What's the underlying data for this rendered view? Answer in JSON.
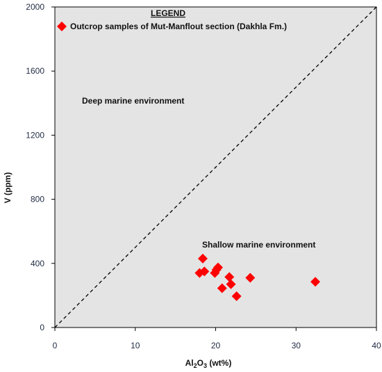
{
  "chart_data": {
    "type": "scatter",
    "xlabel_main": "Al",
    "xlabel_sub": "2",
    "xlabel_main2": "O",
    "xlabel_sub2": "3",
    "xlabel_tail": " (wt%)",
    "ylabel": "V (ppm)",
    "xlim": [
      0,
      40
    ],
    "ylim": [
      0,
      2000
    ],
    "xticks": [
      0,
      10,
      20,
      30,
      40
    ],
    "yticks": [
      0,
      400,
      800,
      1200,
      1600,
      2000
    ],
    "xtick_labels": [
      "0",
      "10",
      "20",
      "30",
      "40"
    ],
    "ytick_labels": [
      "0",
      "400",
      "800",
      "1200",
      "1600",
      "2000"
    ],
    "grid": false,
    "plot_background": "#e4e4e4",
    "marker_color": "#ff0000",
    "marker": "diamond",
    "legend": {
      "title": "LEGEND",
      "entry": "Outcrop samples of Mut-Manflout section (Dakhla Fm.)",
      "placement": "top-left"
    },
    "annotations": {
      "deep": "Deep marine environment",
      "shallow": "Shallow marine environment"
    },
    "boundary_line": {
      "from": [
        0,
        0
      ],
      "to": [
        40,
        2000
      ],
      "style": "dashed"
    },
    "series": [
      {
        "points": [
          {
            "x": 18.4,
            "y": 430
          },
          {
            "x": 18.0,
            "y": 340
          },
          {
            "x": 18.6,
            "y": 350
          },
          {
            "x": 19.9,
            "y": 340
          },
          {
            "x": 20.1,
            "y": 360
          },
          {
            "x": 20.3,
            "y": 375
          },
          {
            "x": 21.7,
            "y": 315
          },
          {
            "x": 21.9,
            "y": 270
          },
          {
            "x": 20.8,
            "y": 245
          },
          {
            "x": 22.6,
            "y": 195
          },
          {
            "x": 24.3,
            "y": 310
          },
          {
            "x": 32.4,
            "y": 285
          }
        ]
      }
    ]
  }
}
